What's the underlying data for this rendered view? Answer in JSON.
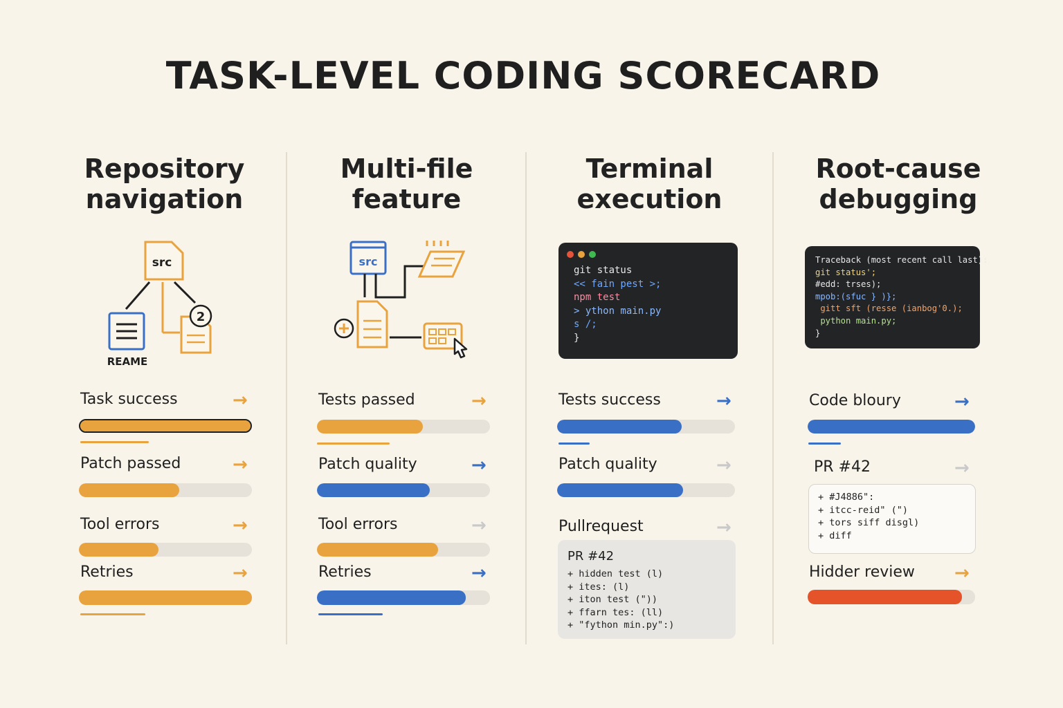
{
  "title": "TASK-LEVEL CODING SCORECARD",
  "colors": {
    "orange": "#e8a23e",
    "blue": "#3a6fc6",
    "red": "#e5532a",
    "track": "#e6e2d9",
    "arrow_muted": "#c9c9c9"
  },
  "columns": [
    {
      "title_lines": [
        "Repository",
        "navigation"
      ],
      "icon": {
        "name": "repo-tree-icon",
        "src_label": "src",
        "readme_label": "REAME",
        "badge": "2"
      },
      "metrics": [
        {
          "label": "Task success",
          "fill": 1.0,
          "color": "orange",
          "arrow_color": "orange",
          "outlined": true
        },
        {
          "label": "Patch passed",
          "fill": 0.58,
          "color": "orange",
          "arrow_color": "orange"
        },
        {
          "label": "Tool errors",
          "fill": 0.46,
          "color": "orange",
          "arrow_color": "orange"
        },
        {
          "label": "Retries",
          "fill": 1.0,
          "color": "orange",
          "arrow_color": "orange"
        }
      ]
    },
    {
      "title_lines": [
        "Multi-file",
        "feature"
      ],
      "icon": {
        "name": "multi-file-flow-icon",
        "src_label": "src"
      },
      "metrics": [
        {
          "label": "Tests passed",
          "fill": 0.61,
          "color": "orange",
          "arrow_color": "orange"
        },
        {
          "label": "Patch quality",
          "fill": 0.65,
          "color": "blue",
          "arrow_color": "blue"
        },
        {
          "label": "Tool errors",
          "fill": 0.7,
          "color": "orange",
          "arrow_color": "muted"
        },
        {
          "label": "Retries",
          "fill": 0.86,
          "color": "blue",
          "arrow_color": "blue"
        }
      ]
    },
    {
      "title_lines": [
        "Terminal",
        "execution"
      ],
      "terminal_lines": [
        "git status",
        "<< fain pest >;",
        "npm test",
        "> ython main.py",
        "s /;",
        "}"
      ],
      "metrics": [
        {
          "label": "Tests success",
          "fill": 0.7,
          "color": "blue",
          "arrow_color": "blue"
        },
        {
          "label": "Patch quality",
          "fill": 0.71,
          "color": "blue",
          "arrow_color": "muted"
        },
        {
          "label": "Pullrequest",
          "arrow_color": "muted"
        }
      ],
      "pr_card": {
        "title": "PR #42",
        "lines": [
          "+ hidden test (l)",
          "+ ites: (l)",
          "+ iton test (\"))",
          "+ ffarn tes: (ll)",
          "+ \"fython min.py\":)"
        ]
      }
    },
    {
      "title_lines": [
        "Root-cause",
        "debugging"
      ],
      "terminal_lines": [
        "Traceback (most recent call last):",
        "git status';",
        "#edd: trses);",
        "mpob:(sfuc } )};",
        " gitt sft (resse (ianbog'0.);",
        " python main.py;",
        "}"
      ],
      "metrics": [
        {
          "label": "Code bloury",
          "fill": 1.0,
          "color": "blue",
          "arrow_color": "blue"
        },
        {
          "label": "PR #42",
          "arrow_color": "muted"
        },
        {
          "label": "Hidder review",
          "fill": 0.92,
          "color": "red",
          "arrow_color": "orange"
        }
      ],
      "pr_card": {
        "lines": [
          "+ #J4886\":",
          "+ itcc-reid\" (\")",
          "+ tors siff disgl)",
          "+ diff"
        ]
      }
    }
  ]
}
